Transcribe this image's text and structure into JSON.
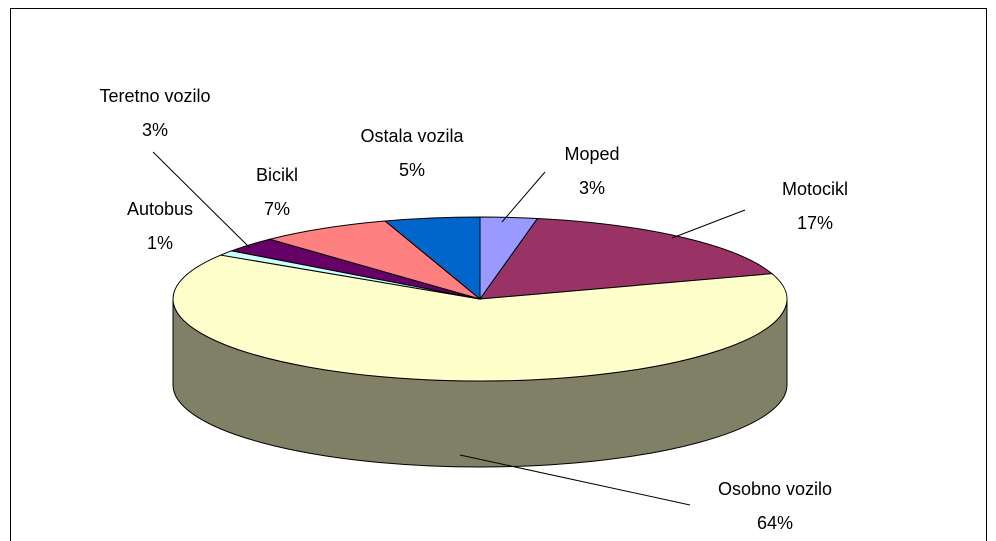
{
  "chart_data": {
    "type": "pie3d",
    "categories": [
      "Moped",
      "Motocikl",
      "Osobno vozilo",
      "Autobus",
      "Teretno vozilo",
      "Bicikl",
      "Ostala vozila"
    ],
    "values": [
      3,
      17,
      64,
      1,
      3,
      7,
      5
    ],
    "value_labels": [
      "3%",
      "17%",
      "64%",
      "1%",
      "3%",
      "7%",
      "5%"
    ],
    "colors": [
      "#9999ff",
      "#993366",
      "#ffffcc",
      "#ccffff",
      "#660066",
      "#ff8080",
      "#0066cc"
    ]
  }
}
